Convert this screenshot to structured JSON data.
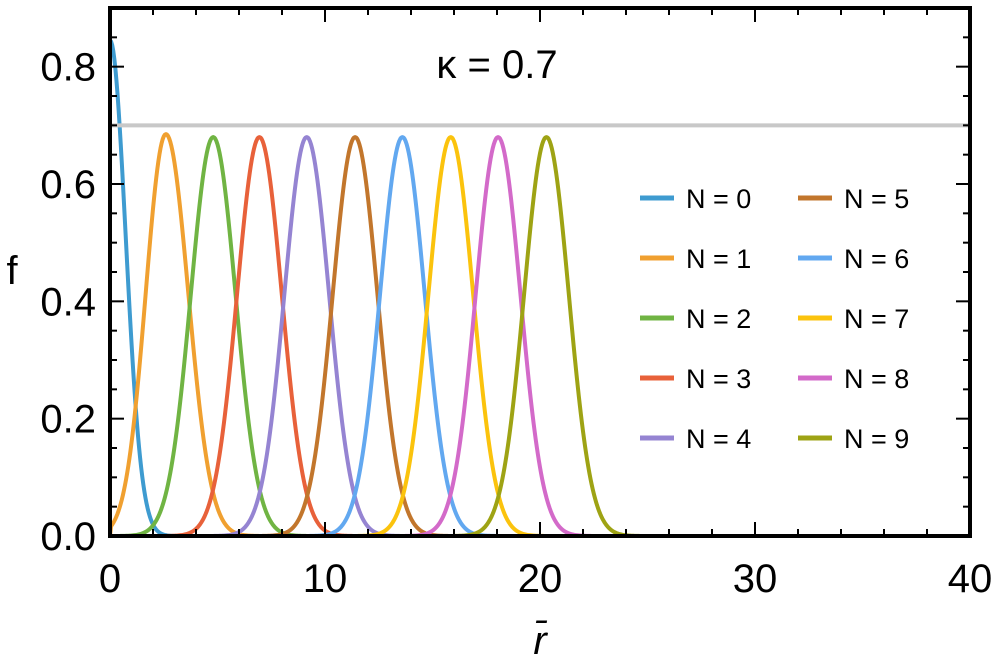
{
  "chart_data": {
    "type": "line",
    "title": "",
    "xlabel": "r̄",
    "ylabel": "f",
    "xlim": [
      0,
      40
    ],
    "ylim": [
      0,
      0.9
    ],
    "xticks": [
      0,
      10,
      20,
      30,
      40
    ],
    "yticks": [
      0.0,
      0.2,
      0.4,
      0.6,
      0.8
    ],
    "xtick_labels": [
      "0",
      "10",
      "20",
      "30",
      "40"
    ],
    "ytick_labels": [
      "0.0",
      "0.2",
      "0.4",
      "0.6",
      "0.8"
    ],
    "grid": false,
    "legend_position": "right",
    "annotation": "κ = 0.7",
    "reference_line": {
      "y": 0.7,
      "color": "#c8c8c8"
    },
    "series": [
      {
        "name": "N = 0",
        "color": "#3e9bd0",
        "peak_x": 0.0,
        "peak_y": 0.845
      },
      {
        "name": "N = 1",
        "color": "#f0a030",
        "peak_x": 2.6,
        "peak_y": 0.685
      },
      {
        "name": "N = 2",
        "color": "#70b443",
        "peak_x": 4.8,
        "peak_y": 0.68
      },
      {
        "name": "N = 3",
        "color": "#e8613a",
        "peak_x": 6.95,
        "peak_y": 0.68
      },
      {
        "name": "N = 4",
        "color": "#9584d2",
        "peak_x": 9.15,
        "peak_y": 0.68
      },
      {
        "name": "N = 5",
        "color": "#c2762c",
        "peak_x": 11.4,
        "peak_y": 0.68
      },
      {
        "name": "N = 6",
        "color": "#62a8f0",
        "peak_x": 13.6,
        "peak_y": 0.68
      },
      {
        "name": "N = 7",
        "color": "#fbc30d",
        "peak_x": 15.85,
        "peak_y": 0.68
      },
      {
        "name": "N = 8",
        "color": "#d36ac9",
        "peak_x": 18.05,
        "peak_y": 0.68
      },
      {
        "name": "N = 9",
        "color": "#9ea314",
        "peak_x": 20.3,
        "peak_y": 0.68
      }
    ]
  }
}
